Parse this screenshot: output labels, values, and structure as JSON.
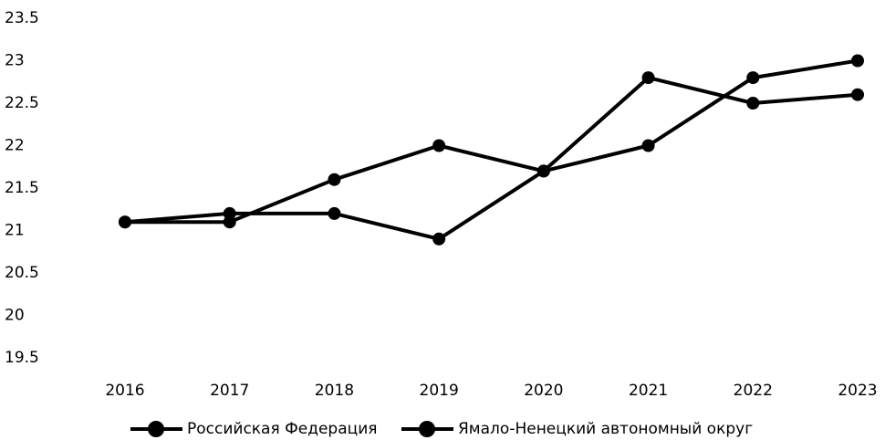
{
  "chart_data": {
    "type": "line",
    "categories": [
      "2016",
      "2017",
      "2018",
      "2019",
      "2020",
      "2021",
      "2022",
      "2023"
    ],
    "series": [
      {
        "name": "Российская Федерация",
        "color": "#000000",
        "values": [
          21.1,
          21.2,
          21.2,
          20.9,
          21.7,
          22.8,
          22.5,
          22.6
        ]
      },
      {
        "name": "Ямало-Ненецкий автономный округ",
        "color": "#000000",
        "values": [
          21.1,
          21.1,
          21.6,
          22.0,
          21.7,
          22.0,
          22.8,
          23.0
        ]
      }
    ],
    "ylim": [
      19.5,
      23.5
    ],
    "yticks": [
      19.5,
      20,
      20.5,
      21,
      21.5,
      22,
      22.5,
      23,
      23.5
    ],
    "grid": false,
    "legend": "bottom"
  }
}
